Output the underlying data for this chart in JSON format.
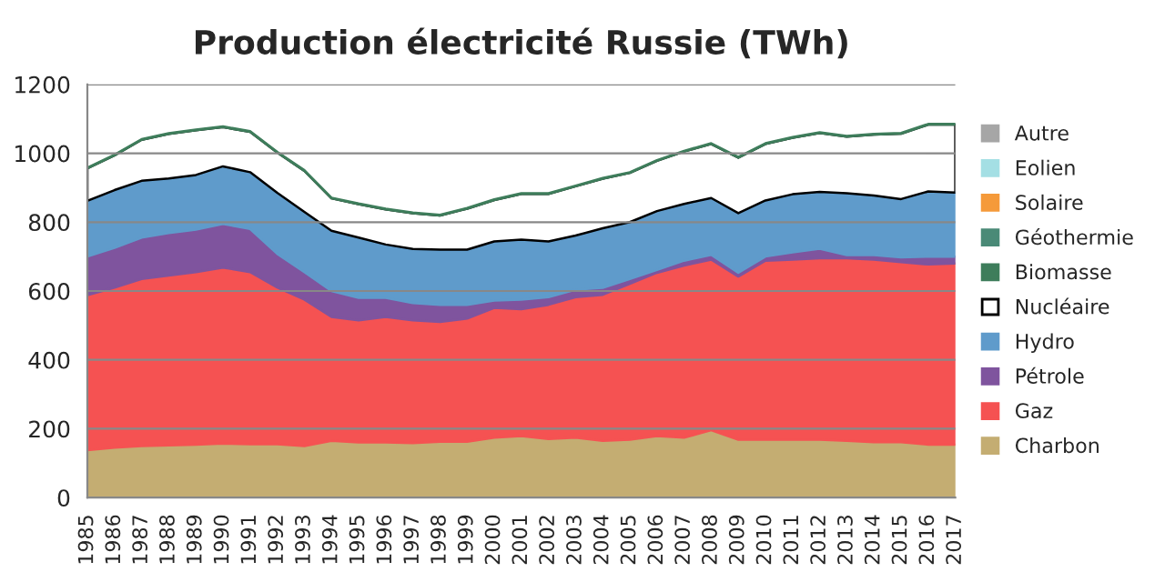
{
  "chart_data": {
    "type": "area",
    "stacked": true,
    "title": "Production électricité Russie (TWh)",
    "categories": [
      "1985",
      "1986",
      "1987",
      "1988",
      "1989",
      "1990",
      "1991",
      "1992",
      "1993",
      "1994",
      "1995",
      "1996",
      "1997",
      "1998",
      "1999",
      "2000",
      "2001",
      "2002",
      "2003",
      "2004",
      "2005",
      "2006",
      "2007",
      "2008",
      "2009",
      "2010",
      "2011",
      "2012",
      "2013",
      "2014",
      "2015",
      "2016",
      "2017"
    ],
    "series": [
      {
        "name": "Charbon",
        "color": "#c4ad72",
        "values": [
          138,
          145,
          150,
          152,
          154,
          157,
          155,
          155,
          150,
          165,
          160,
          160,
          158,
          162,
          162,
          174,
          179,
          170,
          174,
          165,
          168,
          179,
          174,
          196,
          168,
          168,
          168,
          168,
          165,
          161,
          161,
          154,
          154
        ]
      },
      {
        "name": "Gaz",
        "color": "#f55252",
        "values": [
          450,
          465,
          485,
          493,
          501,
          511,
          500,
          455,
          425,
          360,
          355,
          365,
          357,
          348,
          358,
          377,
          368,
          390,
          408,
          424,
          453,
          474,
          500,
          495,
          474,
          520,
          523,
          527,
          530,
          530,
          523,
          523,
          526
        ]
      },
      {
        "name": "Pétrole",
        "color": "#7f549e",
        "values": [
          112,
          115,
          120,
          123,
          123,
          127,
          125,
          98,
          80,
          75,
          65,
          55,
          50,
          50,
          40,
          21,
          28,
          22,
          22,
          20,
          14,
          8,
          14,
          14,
          11,
          12,
          21,
          28,
          9,
          13,
          14,
          23,
          20
        ]
      },
      {
        "name": "Hydro",
        "color": "#5f9bcb",
        "values": [
          162,
          168,
          165,
          159,
          159,
          167,
          165,
          177,
          175,
          175,
          175,
          155,
          157,
          160,
          160,
          172,
          174,
          162,
          157,
          173,
          165,
          171,
          165,
          165,
          173,
          163,
          169,
          165,
          180,
          173,
          169,
          189,
          186
        ]
      },
      {
        "name": "Nucléaire",
        "color": "#ffffff",
        "values": [
          94,
          101,
          119,
          129,
          130,
          114,
          117,
          117,
          119,
          94,
          97,
          102,
          104,
          99,
          119,
          120,
          133,
          138,
          143,
          144,
          143,
          146,
          152,
          157,
          161,
          164,
          164,
          171,
          164,
          177,
          190,
          194,
          197
        ]
      },
      {
        "name": "Biomasse",
        "color": "#3e7d5b",
        "values": [
          2,
          2,
          2,
          2,
          2,
          2,
          2,
          2,
          2,
          2,
          2,
          2,
          2,
          2,
          2,
          2,
          2,
          2,
          2,
          2,
          2,
          2,
          2,
          2,
          2,
          2,
          2,
          2,
          2,
          2,
          2,
          2,
          2
        ]
      },
      {
        "name": "Géothermie",
        "color": "#4a8a77",
        "values": [
          null,
          null,
          null,
          null,
          null,
          null,
          null,
          null,
          null,
          null,
          null,
          null,
          null,
          null,
          null,
          null,
          null,
          null,
          null,
          null,
          null,
          null,
          null,
          null,
          null,
          null,
          null,
          null,
          null,
          null,
          null,
          null,
          null
        ]
      },
      {
        "name": "Solaire",
        "color": "#f59a3a",
        "values": [
          null,
          null,
          null,
          null,
          null,
          null,
          null,
          null,
          null,
          null,
          null,
          null,
          null,
          null,
          null,
          null,
          null,
          null,
          null,
          null,
          null,
          null,
          null,
          null,
          null,
          null,
          null,
          null,
          null,
          null,
          null,
          null,
          null
        ]
      },
      {
        "name": "Eolien",
        "color": "#a4dfe4",
        "values": [
          null,
          null,
          null,
          null,
          null,
          null,
          null,
          null,
          null,
          null,
          null,
          null,
          null,
          null,
          null,
          null,
          null,
          null,
          null,
          null,
          null,
          null,
          null,
          null,
          null,
          null,
          null,
          null,
          null,
          null,
          null,
          null,
          null
        ]
      },
      {
        "name": "Autre",
        "color": "#a6a6a6",
        "values": [
          null,
          null,
          null,
          null,
          null,
          null,
          null,
          null,
          null,
          null,
          null,
          null,
          null,
          null,
          null,
          null,
          null,
          null,
          null,
          null,
          null,
          null,
          null,
          null,
          null,
          null,
          null,
          null,
          null,
          null,
          null,
          null,
          null
        ]
      }
    ],
    "ylim": [
      0,
      1200
    ],
    "yticks": [
      0,
      200,
      400,
      600,
      800,
      1000,
      1200
    ],
    "grid": "y",
    "legend": "right"
  }
}
